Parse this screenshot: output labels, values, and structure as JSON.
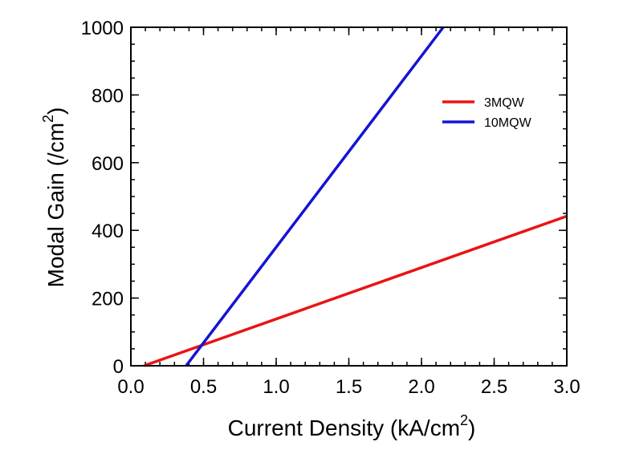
{
  "chart_data": {
    "type": "line",
    "title": "",
    "xlabel": "Current Density (kA/cm",
    "xlabel_sup": "2",
    "xlabel_end": ")",
    "ylabel": "Modal Gain (/cm",
    "ylabel_sup": "2",
    "ylabel_end": ")",
    "xlim": [
      0.0,
      3.0
    ],
    "ylim": [
      0,
      1000
    ],
    "xticks": [
      "0.0",
      "0.5",
      "1.0",
      "1.5",
      "2.0",
      "2.5",
      "3.0"
    ],
    "yticks": [
      "0",
      "200",
      "400",
      "600",
      "800",
      "1000"
    ],
    "x_minor_step": 0.1,
    "y_minor_step": 50,
    "grid": false,
    "legend_position": "top-right",
    "series": [
      {
        "name": "3MQW",
        "color": "#e81414",
        "x": [
          0.09,
          3.0
        ],
        "y": [
          0,
          442
        ]
      },
      {
        "name": "10MQW",
        "color": "#1414d4",
        "x": [
          0.38,
          2.15
        ],
        "y": [
          0,
          1000
        ]
      }
    ]
  }
}
